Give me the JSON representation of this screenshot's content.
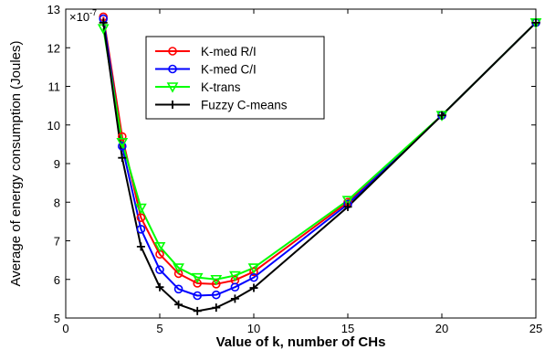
{
  "chart_data": {
    "type": "line",
    "title": "",
    "xlabel": "Value of k, number of CHs",
    "ylabel": "Average of energy consumption (Joules)",
    "y_multiplier": "×10",
    "y_multiplier_exp": "-7",
    "xlim": [
      0,
      25
    ],
    "ylim": [
      5,
      13
    ],
    "xticks": [
      0,
      5,
      10,
      15,
      20,
      25
    ],
    "yticks": [
      5,
      6,
      7,
      8,
      9,
      10,
      11,
      12,
      13
    ],
    "grid": false,
    "legend_position": "top-center",
    "x": [
      2,
      3,
      4,
      5,
      6,
      7,
      8,
      9,
      10,
      15,
      20,
      25
    ],
    "series": [
      {
        "name": "K-med R/I",
        "color": "#ff0000",
        "marker": "circle",
        "values": [
          12.8,
          9.7,
          7.6,
          6.65,
          6.15,
          5.9,
          5.88,
          5.98,
          6.2,
          8.0,
          10.25,
          12.65
        ]
      },
      {
        "name": "K-med C/I",
        "color": "#0000ff",
        "marker": "circle",
        "values": [
          12.75,
          9.45,
          7.3,
          6.25,
          5.75,
          5.58,
          5.6,
          5.8,
          6.05,
          7.95,
          10.25,
          12.65
        ]
      },
      {
        "name": "K-trans",
        "color": "#00ff00",
        "marker": "triangle-down",
        "values": [
          12.5,
          9.55,
          7.85,
          6.85,
          6.3,
          6.05,
          6.0,
          6.1,
          6.3,
          8.05,
          10.25,
          12.65
        ]
      },
      {
        "name": "Fuzzy C-means",
        "color": "#000000",
        "marker": "plus",
        "values": [
          12.65,
          9.15,
          6.85,
          5.8,
          5.35,
          5.18,
          5.27,
          5.5,
          5.78,
          7.88,
          10.25,
          12.65
        ]
      }
    ]
  }
}
